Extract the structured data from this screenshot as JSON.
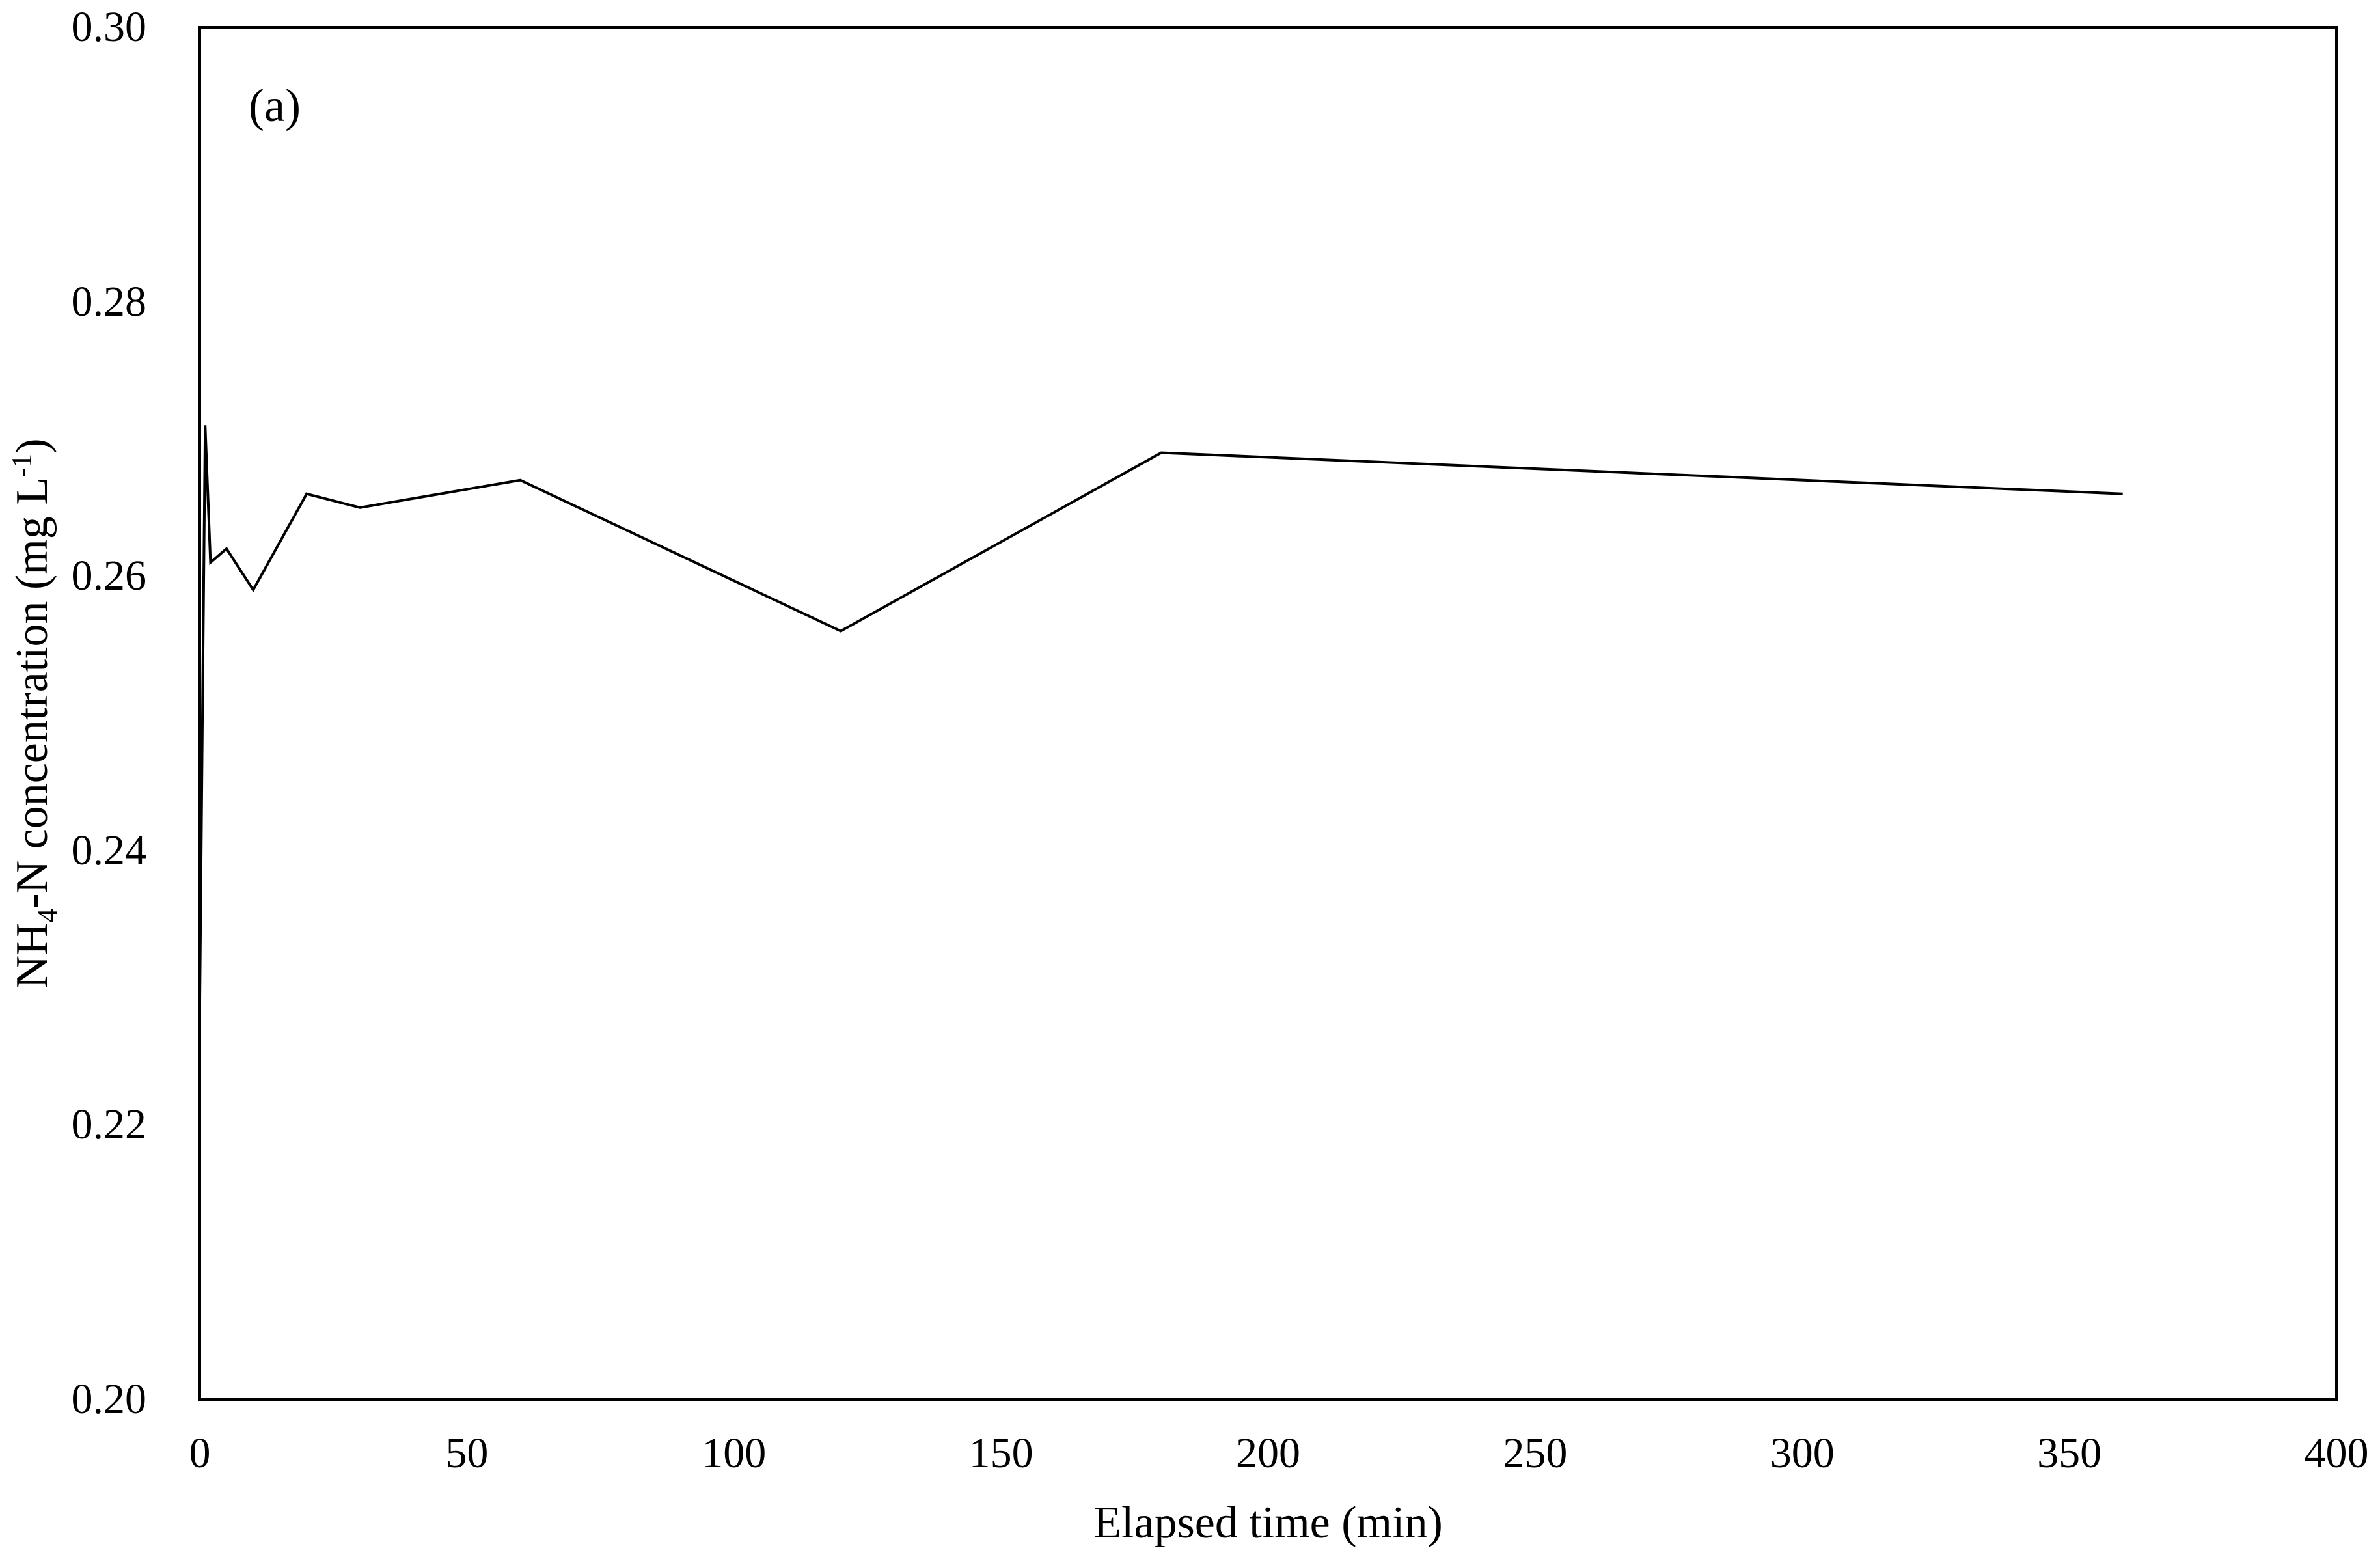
{
  "figure": {
    "panel_label": "(a)",
    "background_color": "#ffffff"
  },
  "chart_data": {
    "type": "line",
    "title": "",
    "xlabel": "Elapsed time (min)",
    "ylabel_parts": {
      "base1": "NH",
      "sub1": "4",
      "base2": "-N concentration (mg L",
      "sup1": "-1",
      "base3": ")"
    },
    "xlim": [
      0,
      400
    ],
    "ylim": [
      0.2,
      0.3
    ],
    "grid": false,
    "legend": "none",
    "frame": "full-box",
    "axis_color": "#000000",
    "x_ticks": [
      {
        "value": 0,
        "label": "0"
      },
      {
        "value": 50,
        "label": "50"
      },
      {
        "value": 100,
        "label": "100"
      },
      {
        "value": 150,
        "label": "150"
      },
      {
        "value": 200,
        "label": "200"
      },
      {
        "value": 250,
        "label": "250"
      },
      {
        "value": 300,
        "label": "300"
      },
      {
        "value": 350,
        "label": "350"
      },
      {
        "value": 400,
        "label": "400"
      }
    ],
    "y_ticks": [
      {
        "value": 0.2,
        "label": "0.20"
      },
      {
        "value": 0.22,
        "label": "0.22"
      },
      {
        "value": 0.24,
        "label": "0.24"
      },
      {
        "value": 0.26,
        "label": "0.26"
      },
      {
        "value": 0.28,
        "label": "0.28"
      },
      {
        "value": 0.3,
        "label": "0.30"
      }
    ],
    "series": [
      {
        "color": "#000000",
        "points": [
          [
            0,
            0.229
          ],
          [
            1,
            0.271
          ],
          [
            2,
            0.261
          ],
          [
            5,
            0.262
          ],
          [
            10,
            0.259
          ],
          [
            20,
            0.266
          ],
          [
            30,
            0.265
          ],
          [
            60,
            0.267
          ],
          [
            120,
            0.256
          ],
          [
            180,
            0.269
          ],
          [
            360,
            0.266
          ]
        ]
      }
    ]
  }
}
